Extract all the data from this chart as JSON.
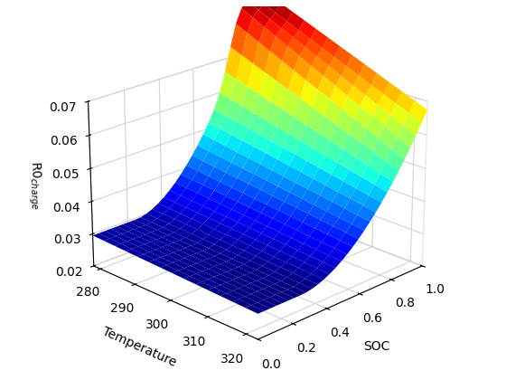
{
  "soc_min": 0,
  "soc_max": 1,
  "soc_steps": 30,
  "temp_min": 278,
  "temp_max": 323,
  "temp_steps": 15,
  "zlim": [
    0.02,
    0.07
  ],
  "xlabel": "SOC",
  "ylabel": "Temperature",
  "zlabel_display": "R0$_{charge}$",
  "colormap": "jet",
  "elev": 22,
  "azim": -135,
  "xticks": [
    0,
    0.2,
    0.4,
    0.6,
    0.8,
    1
  ],
  "yticks": [
    280,
    290,
    300,
    310,
    320
  ],
  "zticks": [
    0.02,
    0.03,
    0.04,
    0.05,
    0.06,
    0.07
  ],
  "figsize": [
    5.6,
    4.2
  ],
  "dpi": 100
}
